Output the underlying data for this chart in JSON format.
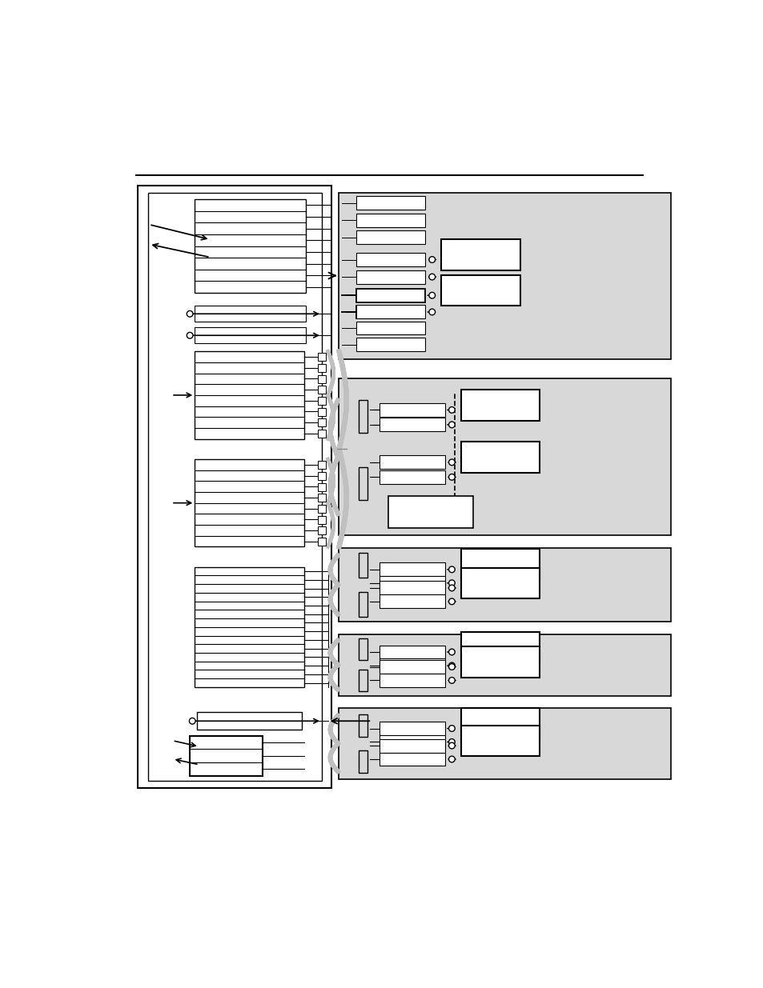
{
  "bg_color": "#ffffff",
  "gray_bg": "#d8d8d8",
  "line_color": "#000000",
  "figure_width": 9.54,
  "figure_height": 12.35
}
